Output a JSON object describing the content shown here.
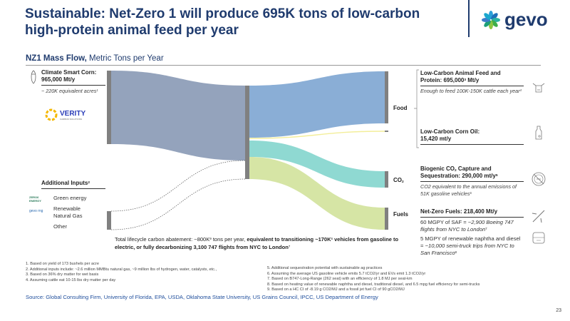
{
  "header": {
    "title": "Sustainable: Net-Zero 1 will produce 695K tons of low-carbon high-protein animal feed per year",
    "logo": "gevo"
  },
  "subtitle": {
    "bold": "NZ1 Mass Flow,",
    "rest": " Metric Tons per Year"
  },
  "inputs": {
    "corn": {
      "title": "Climate Smart Corn:",
      "value": "965,000 Mt/y",
      "note": "~ 220K equivalent acres",
      "note_sup": "1",
      "partner_logo": "VERITY",
      "partner_sub": "CARBON SOLUTIONS"
    },
    "additional": {
      "title": "Additional Inputs",
      "sup": "2",
      "items": [
        "Green energy",
        "Renewable Natural Gas",
        "Other"
      ],
      "logos": [
        "ZERO6 ENERGY",
        "gevo rng"
      ]
    }
  },
  "nodes": {
    "food": "Food",
    "co2": "CO",
    "co2_sub": "2",
    "fuels": "Fuels"
  },
  "outputs": [
    {
      "title": "Low-Carbon Animal Feed and Protein: 695,000",
      "sup": "3",
      "unit": " Mt/y",
      "note": "Enough to feed 100K-150K cattle each year",
      "note_sup": "4",
      "icon": "cow-icon"
    },
    {
      "title": "Low-Carbon Corn Oil:",
      "value": "15,420 mt/y",
      "icon": "bottle-icon"
    },
    {
      "title": "Biogenic CO",
      "title_sub": "2",
      "title2": " Capture and Sequestration: 290,000 mt/y",
      "sup": "5",
      "note": "CO2 equivalent to the annual emissions of 51K gasoline vehicles",
      "note_sup": "6",
      "icon": "co2-icon"
    },
    {
      "title": "Net-Zero Fuels: 218,400 Mt/y",
      "note1": "60 MGPY of SAF = ",
      "note1_it": "~2,900 Boeing 747 flights from NYC to London",
      "note1_sup": "7",
      "note2": "5 MGPY of renewable naphtha and diesel = ",
      "note2_it": "~10,000 semi-truck trips from NYC to San Francisco",
      "note2_sup": "8",
      "icons": [
        "airplane-icon",
        "truck-icon"
      ]
    }
  ],
  "abatement": {
    "plain": "Total lifecycle carbon abatement: ~800K",
    "sup": "9",
    "plain2": " tons per year, ",
    "bold": "equivalent to transitioning ~170K",
    "bold_sup": "6",
    "bold2": " vehicles from gasoline to electric, or fully decarbonizing 3,100 747 flights from NYC to London",
    "bold_sup2": "7"
  },
  "footnotes_left": [
    "1.   Based on yield of 173 bushels per acre",
    "2.   Additional inputs include: ~2.6 million MMBtu natural gas, ~9 million lbs of hydrogen, water, catalysts, etc.,",
    "3.   Based on 36% dry matter for wet basis",
    "4.   Assuming cattle eat 10-15 lbs dry matter per day"
  ],
  "footnotes_right": [
    "5.   Additional sequestration potential with sustainable ag practices",
    "6.   Assuming the average US gasoline vehicle emits 5.7 tCO2/yr and EVs emit 1.3 tCO2/yr",
    "7.   Based on B747-Long-Range (262 seat) with an efficiency of 1.8 MJ per seat-km",
    "8.   Based on heating value of renewable naphtha and diesel, traditional diesel, and 6.5 mpg fuel efficiency for semi-trucks",
    "9.   Based on a HC CI of -8.19 g CO2/MJ and a fossil jet fuel CI of 90 gCO2/MJ"
  ],
  "source": "Source: Global Consulting Firm, University of Florida, EPA, USDA, Oklahoma State University, US Grains Council, IPCC, US Department of Energy",
  "page_number": "23",
  "colors": {
    "title": "#1f3b6e",
    "corn_flow": "#94a3bc",
    "food_flow": "#8aaed6",
    "oil_flow": "#f3ee9a",
    "co2_flow": "#8fd9d2",
    "fuels_flow": "#d6e5a5",
    "node": "#808080",
    "source": "#1f4e9c"
  }
}
